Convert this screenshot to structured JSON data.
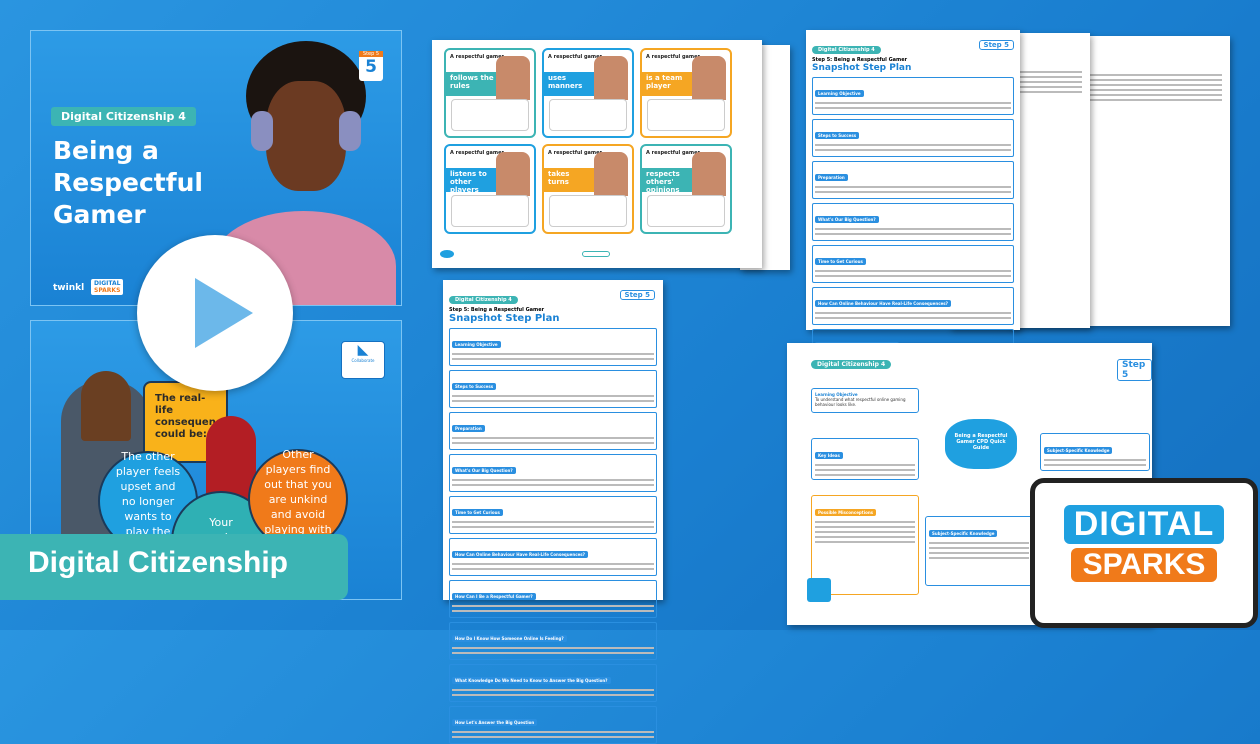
{
  "slide_title": {
    "tag": "Digital Citizenship 4",
    "title_lines": [
      "Being a",
      "Respectful",
      "Gamer"
    ],
    "step_badge": "Step 5",
    "twinkl_logo": "twinkl",
    "sparks_logo": [
      "DIGITAL",
      "SPARKS"
    ]
  },
  "slide_consequences": {
    "collaborate_label": "Collaborate",
    "heading": "The real-life consequences could be:",
    "bubbles": [
      "The other player feels upset and no longer wants to play the game.",
      "Your gaming profile gets",
      "Other players find out that you are unkind and avoid playing with you."
    ]
  },
  "banner": {
    "label": "Digital Citizenship"
  },
  "play_button": {
    "icon": "play-icon"
  },
  "worksheet": {
    "cards": [
      {
        "prefix": "A respectful gamer...",
        "trait": "follows the rules",
        "color": "#3cb4b4"
      },
      {
        "prefix": "A respectful gamer...",
        "trait": "uses manners",
        "color": "#1fa0e0"
      },
      {
        "prefix": "A respectful gamer...",
        "trait": "is a team player",
        "color": "#f5a623"
      },
      {
        "prefix": "A respectful gamer...",
        "trait": "listens to other players",
        "color": "#1fa0e0"
      },
      {
        "prefix": "A respectful gamer...",
        "trait": "takes turns",
        "color": "#f5a623"
      },
      {
        "prefix": "A respectful gamer...",
        "trait": "respects others' opinions",
        "color": "#3cb4b4"
      }
    ]
  },
  "step_plan": {
    "tag": "Digital Citizenship 4",
    "subtitle": "Step 5: Being a Respectful Gamer",
    "title": "Snapshot Step Plan",
    "step_badge": "Step 5",
    "sections": [
      "Learning Objective",
      "Steps to Success",
      "Preparation",
      "What's Our Big Question?",
      "Time to Get Curious",
      "How Can Online Behaviour Have Real-Life Consequences?",
      "How Can I Be a Respectful Gamer?",
      "How Do I Know How Someone Online Is Feeling?",
      "What Knowledge Do We Need to Know to Answer the Big Question?",
      "How Let's Answer the Big Question"
    ]
  },
  "cpd_guide": {
    "tag": "Digital Citizenship 4",
    "step_badge": "Step 5",
    "center": "Being a Respectful Gamer CPD Quick Guide",
    "learning_objective": "Learning Objective",
    "learning_objective_text": "To understand what respectful online gaming behaviour looks like.",
    "key_ideas": "Key Ideas",
    "misconceptions": "Possible Misconceptions",
    "knowledge": "Subject-Specific Knowledge"
  },
  "sparks_badge": {
    "line1": "DIGITAL",
    "line2": "SPARKS"
  },
  "colors": {
    "background": "#1a82d4",
    "teal": "#3cb4b4",
    "orange": "#f07a1a",
    "yellow": "#f9b21a"
  }
}
